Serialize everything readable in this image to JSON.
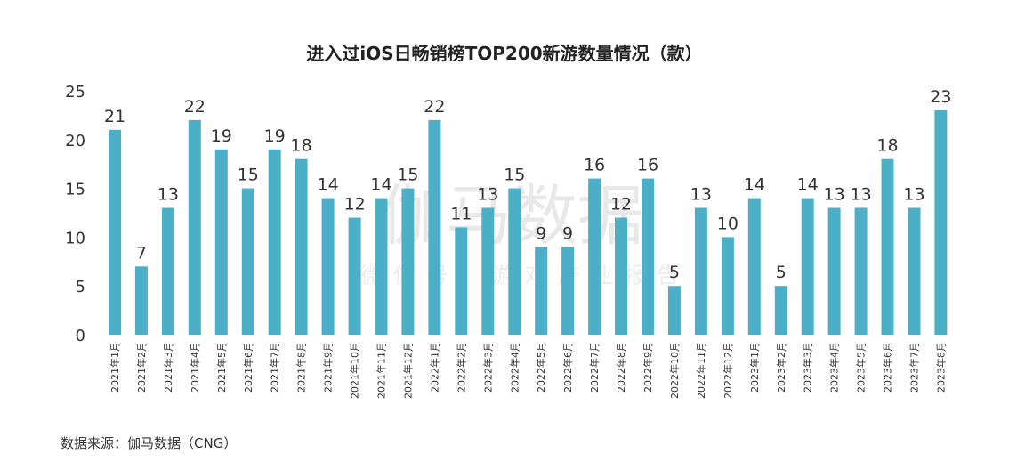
{
  "chart_data": {
    "type": "bar",
    "title": "进入过iOS日畅销榜TOP200新游数量情况（款）",
    "categories": [
      "2021年1月",
      "2021年2月",
      "2021年3月",
      "2021年4月",
      "2021年5月",
      "2021年6月",
      "2021年7月",
      "2021年8月",
      "2021年9月",
      "2021年10月",
      "2021年11月",
      "2021年12月",
      "2022年1月",
      "2022年2月",
      "2022年3月",
      "2022年4月",
      "2022年5月",
      "2022年6月",
      "2022年7月",
      "2022年8月",
      "2022年9月",
      "2022年10月",
      "2022年11月",
      "2022年12月",
      "2023年1月",
      "2023年2月",
      "2023年3月",
      "2023年4月",
      "2023年5月",
      "2023年6月",
      "2023年7月",
      "2023年8月"
    ],
    "values": [
      21,
      7,
      13,
      22,
      19,
      15,
      19,
      18,
      14,
      12,
      14,
      15,
      22,
      11,
      13,
      15,
      9,
      9,
      16,
      12,
      16,
      5,
      13,
      10,
      14,
      5,
      14,
      13,
      13,
      18,
      13,
      23
    ],
    "yticks": [
      0,
      5,
      10,
      15,
      20,
      25
    ],
    "ylim": [
      0,
      25
    ],
    "grid": false,
    "bar_color": "#4cafc8"
  },
  "watermark": {
    "main": "伽马数据",
    "sub": "微信号：游戏产业报告"
  },
  "source": "数据来源：伽马数据（CNG）"
}
